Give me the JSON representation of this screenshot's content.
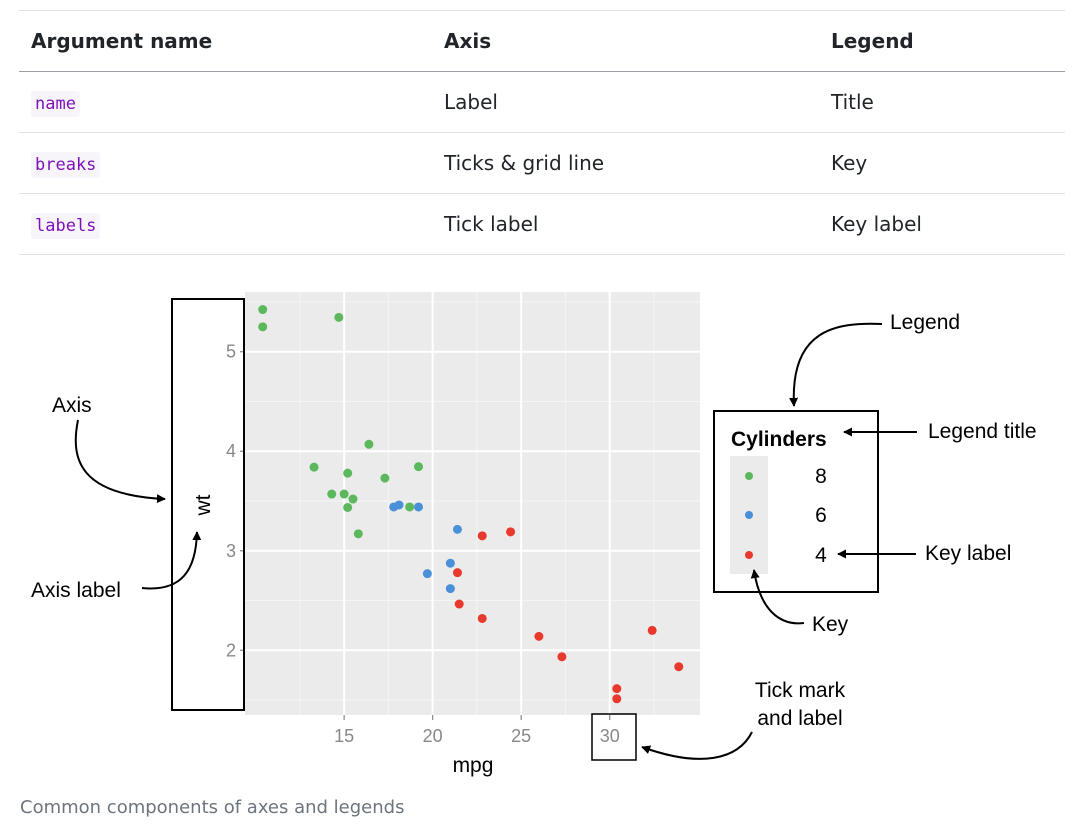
{
  "table": {
    "headers": [
      "Argument name",
      "Axis",
      "Legend"
    ],
    "rows": [
      {
        "arg": "name",
        "axis": "Label",
        "legend": "Title"
      },
      {
        "arg": "breaks",
        "axis": "Ticks & grid line",
        "legend": "Key"
      },
      {
        "arg": "labels",
        "axis": "Tick label",
        "legend": "Key label"
      }
    ]
  },
  "figure": {
    "annotations": {
      "axis": "Axis",
      "axis_label": "Axis label",
      "legend": "Legend",
      "legend_title": "Legend title",
      "key_label": "Key label",
      "key": "Key",
      "tick_mark_line1": "Tick mark",
      "tick_mark_line2": "and label"
    },
    "caption": "Common components of axes and legends"
  },
  "chart_data": {
    "type": "scatter",
    "xlabel": "mpg",
    "ylabel": "wt",
    "xlim": [
      9.4,
      35.1
    ],
    "ylim": [
      1.35,
      5.6
    ],
    "xticks": [
      15,
      20,
      25,
      30
    ],
    "yticks": [
      2,
      3,
      4,
      5
    ],
    "grid": true,
    "legend": {
      "title": "Cylinders",
      "placement": "right"
    },
    "series": [
      {
        "name": "8",
        "color": "#5cb85c",
        "points": [
          [
            10.4,
            5.25
          ],
          [
            10.4,
            5.424
          ],
          [
            14.7,
            5.345
          ],
          [
            13.3,
            3.84
          ],
          [
            14.3,
            3.57
          ],
          [
            15.0,
            3.57
          ],
          [
            15.2,
            3.435
          ],
          [
            15.2,
            3.78
          ],
          [
            15.5,
            3.52
          ],
          [
            15.8,
            3.17
          ],
          [
            16.4,
            4.07
          ],
          [
            17.3,
            3.73
          ],
          [
            18.7,
            3.44
          ],
          [
            19.2,
            3.845
          ]
        ]
      },
      {
        "name": "6",
        "color": "#4a90d9",
        "points": [
          [
            17.8,
            3.44
          ],
          [
            18.1,
            3.46
          ],
          [
            19.2,
            3.44
          ],
          [
            19.7,
            2.77
          ],
          [
            21.0,
            2.62
          ],
          [
            21.0,
            2.875
          ],
          [
            21.4,
            3.215
          ]
        ]
      },
      {
        "name": "4",
        "color": "#e8392c",
        "points": [
          [
            21.4,
            2.78
          ],
          [
            21.5,
            2.465
          ],
          [
            22.8,
            2.32
          ],
          [
            22.8,
            3.15
          ],
          [
            24.4,
            3.19
          ],
          [
            26.0,
            2.14
          ],
          [
            27.3,
            1.935
          ],
          [
            30.4,
            1.615
          ],
          [
            30.4,
            1.513
          ],
          [
            32.4,
            2.2
          ],
          [
            33.9,
            1.835
          ]
        ]
      }
    ]
  }
}
